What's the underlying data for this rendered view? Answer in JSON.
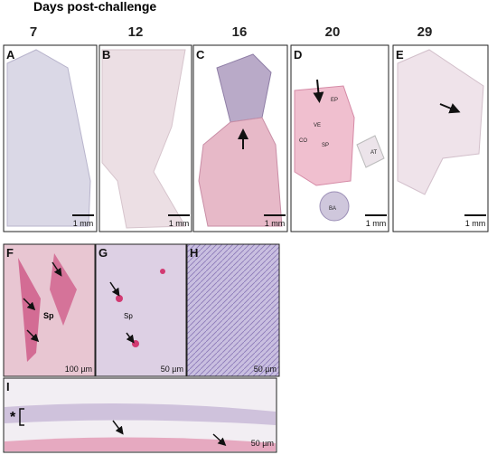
{
  "header": {
    "title": "Days post-challenge",
    "days": [
      "7",
      "12",
      "16",
      "20",
      "29"
    ]
  },
  "panels": [
    {
      "letter": "A",
      "scale_bar": "1 mm"
    },
    {
      "letter": "B",
      "scale_bar": "1 mm"
    },
    {
      "letter": "C",
      "scale_bar": "1 mm"
    },
    {
      "letter": "D",
      "scale_bar": "1 mm",
      "labels": [
        "EP",
        "VE",
        "CO",
        "SP",
        "AT",
        "BA"
      ]
    },
    {
      "letter": "E",
      "scale_bar": "1 mm"
    },
    {
      "letter": "F",
      "scale_bar": "100 µm",
      "labels": [
        "Sp"
      ]
    },
    {
      "letter": "G",
      "scale_bar": "50 µm",
      "labels": [
        "Sp"
      ]
    },
    {
      "letter": "H",
      "scale_bar": "50 µm"
    },
    {
      "letter": "I",
      "scale_bar": "50 µm",
      "labels": [
        "*"
      ]
    }
  ]
}
